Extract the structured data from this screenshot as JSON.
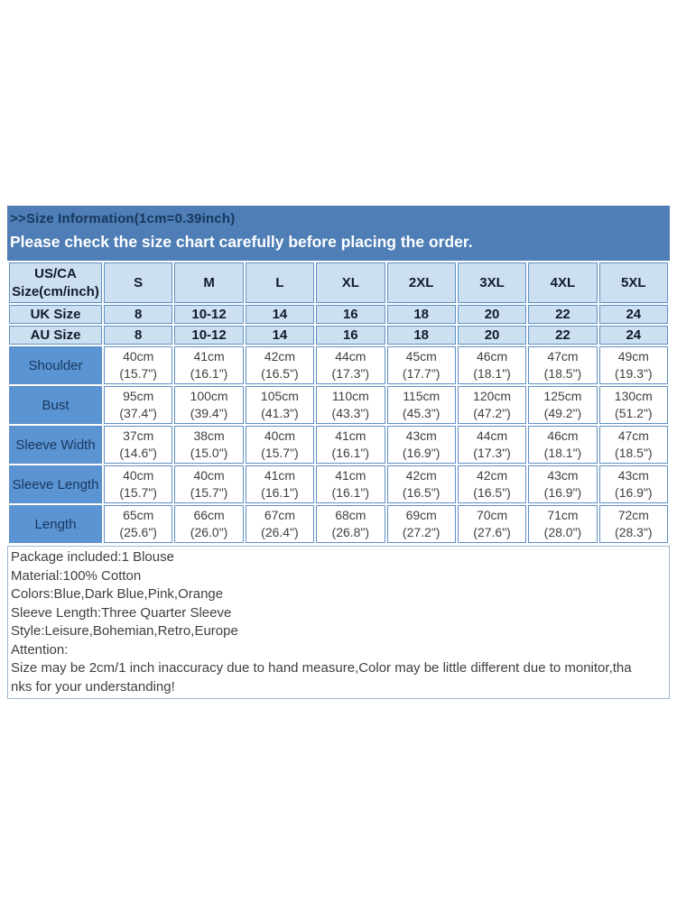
{
  "colors": {
    "band_blue": "#4e7eb5",
    "light_cell_blue": "#cde0f2",
    "mid_cell_blue": "#5b94d2",
    "navy_text": "#17375e",
    "header_text": "#111b2e",
    "cell_border_blue": "#5e8fc4",
    "body_text": "#3f3f3f",
    "details_border": "#9fb6d4"
  },
  "header": {
    "title": ">>Size Information(1cm=0.39inch)",
    "notice": "Please check the size chart carefully before placing the order."
  },
  "size_table": {
    "corner": {
      "line1": "US/CA",
      "line2": "Size(cm/inch)"
    },
    "sizes": [
      "S",
      "M",
      "L",
      "XL",
      "2XL",
      "3XL",
      "4XL",
      "5XL"
    ],
    "region_rows": [
      {
        "label": "UK Size",
        "values": [
          "8",
          "10-12",
          "14",
          "16",
          "18",
          "20",
          "22",
          "24"
        ]
      },
      {
        "label": "AU Size",
        "values": [
          "8",
          "10-12",
          "14",
          "16",
          "18",
          "20",
          "22",
          "24"
        ]
      }
    ],
    "measurement_rows": [
      {
        "label": "Shoulder",
        "cm": [
          "40cm",
          "41cm",
          "42cm",
          "44cm",
          "45cm",
          "46cm",
          "47cm",
          "49cm"
        ],
        "inch": [
          "(15.7\")",
          "(16.1\")",
          "(16.5\")",
          "(17.3\")",
          "(17.7\")",
          "(18.1\")",
          "(18.5\")",
          "(19.3\")"
        ]
      },
      {
        "label": "Bust",
        "cm": [
          "95cm",
          "100cm",
          "105cm",
          "110cm",
          "115cm",
          "120cm",
          "125cm",
          "130cm"
        ],
        "inch": [
          "(37.4\")",
          "(39.4\")",
          "(41.3\")",
          "(43.3\")",
          "(45.3\")",
          "(47.2\")",
          "(49.2\")",
          "(51.2\")"
        ]
      },
      {
        "label": "Sleeve Width",
        "cm": [
          "37cm",
          "38cm",
          "40cm",
          "41cm",
          "43cm",
          "44cm",
          "46cm",
          "47cm"
        ],
        "inch": [
          "(14.6\")",
          "(15.0\")",
          "(15.7\")",
          "(16.1\")",
          "(16.9\")",
          "(17.3\")",
          "(18.1\")",
          "(18.5\")"
        ]
      },
      {
        "label": "Sleeve Length",
        "cm": [
          "40cm",
          "40cm",
          "41cm",
          "41cm",
          "42cm",
          "42cm",
          "43cm",
          "43cm"
        ],
        "inch": [
          "(15.7\")",
          "(15.7\")",
          "(16.1\")",
          "(16.1\")",
          "(16.5\")",
          "(16.5\")",
          "(16.9\")",
          "(16.9\")"
        ]
      },
      {
        "label": "Length",
        "cm": [
          "65cm",
          "66cm",
          "67cm",
          "68cm",
          "69cm",
          "70cm",
          "71cm",
          "72cm"
        ],
        "inch": [
          "(25.6\")",
          "(26.0\")",
          "(26.4\")",
          "(26.8\")",
          "(27.2\")",
          "(27.6\")",
          "(28.0\")",
          "(28.3\")"
        ]
      }
    ]
  },
  "details": {
    "lines": [
      "Package included:1 Blouse",
      "Material:100% Cotton",
      "Colors:Blue,Dark Blue,Pink,Orange",
      "Sleeve Length:Three Quarter Sleeve",
      "Style:Leisure,Bohemian,Retro,Europe",
      "Attention:",
      "Size may be 2cm/1 inch inaccuracy due to hand measure,Color may be little different due to monitor,tha",
      "nks for your understanding!"
    ]
  }
}
